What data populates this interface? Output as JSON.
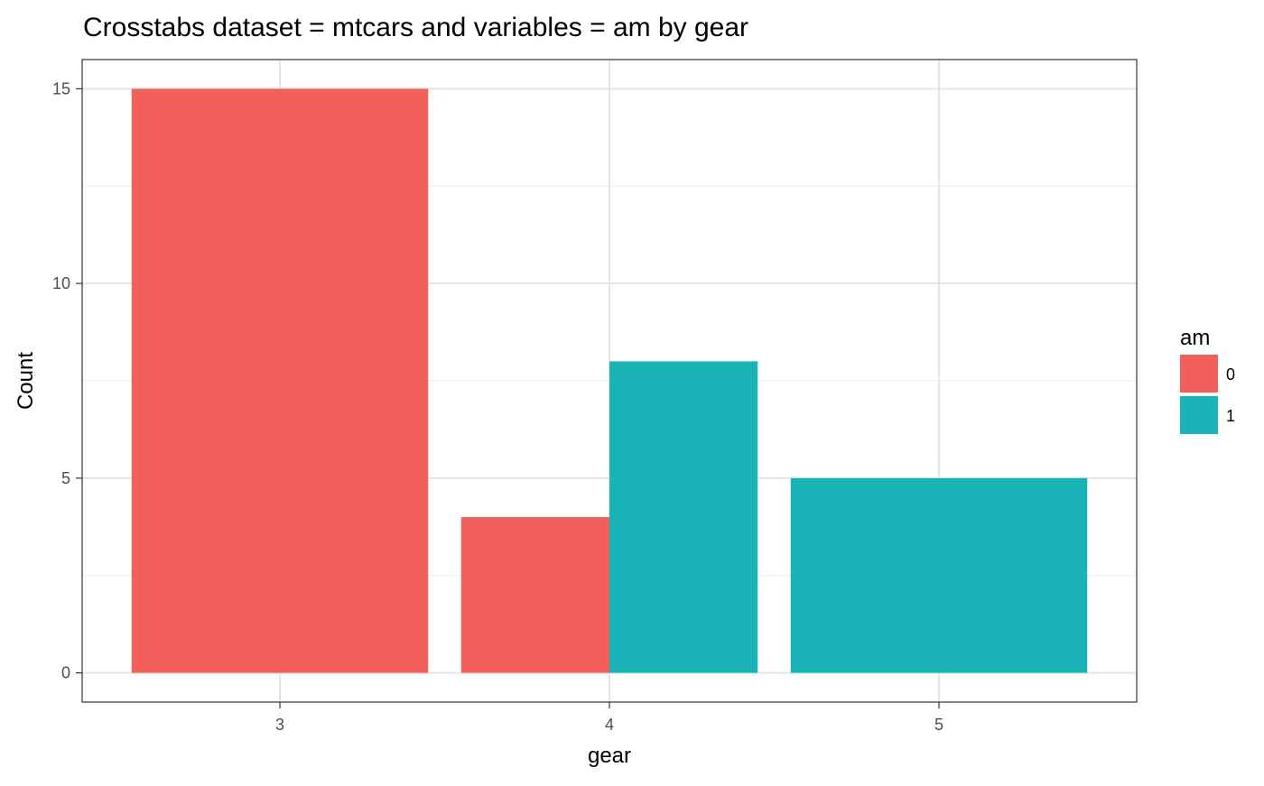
{
  "chart_data": {
    "type": "bar",
    "title": "Crosstabs dataset = mtcars and variables = am by gear",
    "xlabel": "gear",
    "ylabel": "Count",
    "categories": [
      "3",
      "4",
      "5"
    ],
    "series": [
      {
        "name": "0",
        "color": "#F2605B",
        "values": [
          15,
          4,
          0
        ]
      },
      {
        "name": "1",
        "color": "#1AB3B8",
        "values": [
          0,
          8,
          5
        ]
      }
    ],
    "position": "dodge",
    "ylim": [
      -0.75,
      15.75
    ],
    "yticks": [
      0,
      5,
      10,
      15
    ],
    "grid": true,
    "legend": {
      "title": "am",
      "position": "right",
      "entries": [
        "0",
        "1"
      ]
    }
  }
}
